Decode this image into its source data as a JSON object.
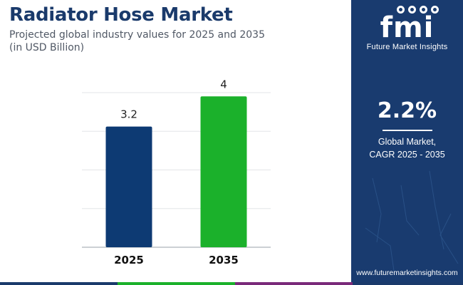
{
  "header": {
    "title": "Radiator Hose Market",
    "subtitle_line1": "Projected global industry values for 2025 and 2035",
    "subtitle_line2": "(in USD Billion)"
  },
  "chart_data": {
    "type": "bar",
    "categories": [
      "2025",
      "2035"
    ],
    "values": [
      3.2,
      4
    ],
    "value_labels": [
      "3.2",
      "4"
    ],
    "title": "Radiator Hose Market",
    "subtitle": "Projected global industry values for 2025 and 2035 (in USD Billion)",
    "xlabel": "",
    "ylabel": "",
    "ylim": [
      0,
      4.1
    ],
    "grid": true,
    "legend": "none",
    "bar_colors": [
      "#0d3a73",
      "#1bb12b"
    ]
  },
  "side_panel": {
    "logo_text": "fmi",
    "logo_name": "Future Market Insights",
    "cagr_value": "2.2%",
    "cagr_label_line1": "Global Market,",
    "cagr_label_line2": "CAGR 2025 - 2035",
    "website": "www.futuremarketinsights.com"
  },
  "colors": {
    "title": "#1a3a6b",
    "panel_background": "#193b6f",
    "strip": [
      "#1a3a6b",
      "#1bb12b",
      "#7a2a7a",
      "#1a3a6b"
    ]
  }
}
